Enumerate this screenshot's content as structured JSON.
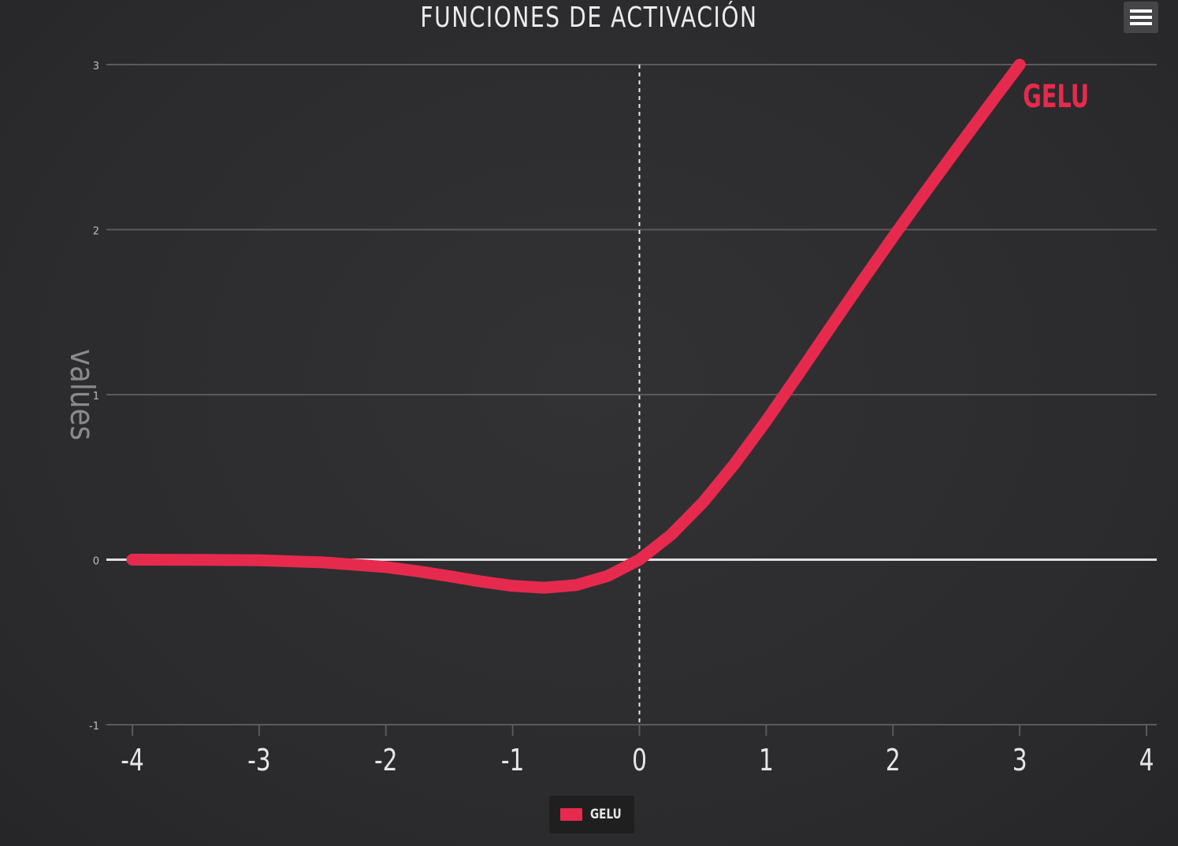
{
  "chart_data": {
    "type": "line",
    "title": "FUNCIONES DE ACTIVACIÓN",
    "xlabel": "",
    "ylabel": "values",
    "xlim": [
      -4,
      4
    ],
    "ylim": [
      -1,
      3
    ],
    "x_ticks": [
      "-4",
      "-3",
      "-2",
      "-1",
      "0",
      "1",
      "2",
      "3",
      "4"
    ],
    "y_ticks": [
      "-1",
      "0",
      "1",
      "2",
      "3"
    ],
    "grid": true,
    "legend": "bottom-center",
    "series": [
      {
        "name": "GELU",
        "color": "#e62a4e",
        "x": [
          -4,
          -3.5,
          -3,
          -2.5,
          -2,
          -1.75,
          -1.5,
          -1.25,
          -1,
          -0.75,
          -0.5,
          -0.25,
          0,
          0.25,
          0.5,
          0.75,
          1,
          1.25,
          1.5,
          1.75,
          2,
          2.25,
          2.5,
          2.75,
          3
        ],
        "y": [
          0,
          -0.001,
          -0.004,
          -0.016,
          -0.045,
          -0.07,
          -0.1,
          -0.132,
          -0.159,
          -0.17,
          -0.154,
          -0.099,
          0,
          0.151,
          0.346,
          0.58,
          0.841,
          1.118,
          1.4,
          1.68,
          1.955,
          2.222,
          2.485,
          2.744,
          3.0
        ]
      }
    ],
    "annotations": [
      {
        "text": "GELU",
        "color": "#e62a4e"
      }
    ]
  },
  "ui": {
    "menu_icon": "hamburger-menu-icon",
    "background_color": "#2b2b2d",
    "grid_color": "#5a5a5c",
    "zero_line_color": "#e0e0e0",
    "text_color": "#e6e6e6",
    "legend_label": "GELU"
  }
}
